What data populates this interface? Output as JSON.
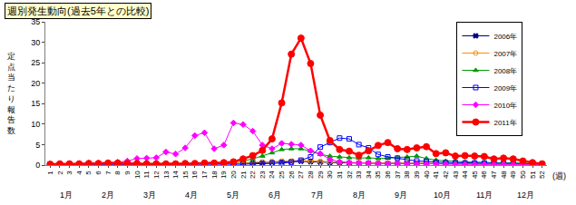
{
  "chart_data": {
    "type": "line",
    "title": "週別発生動向(過去5年との比較)",
    "y_label": "定点当たり報告数",
    "x_label": "(週)",
    "categories": [
      "1",
      "2",
      "3",
      "4",
      "5",
      "6",
      "7",
      "8",
      "9",
      "10",
      "11",
      "12",
      "13",
      "14",
      "15",
      "16",
      "17",
      "18",
      "19",
      "20",
      "21",
      "22",
      "23",
      "24",
      "25",
      "26",
      "27",
      "28",
      "29",
      "30",
      "31",
      "32",
      "33",
      "34",
      "35",
      "36",
      "37",
      "38",
      "39",
      "40",
      "41",
      "42",
      "43",
      "44",
      "45",
      "46",
      "47",
      "48",
      "49",
      "50",
      "51",
      "52"
    ],
    "month_labels": [
      "1月",
      "2月",
      "3月",
      "4月",
      "5月",
      "6月",
      "7月",
      "8月",
      "9月",
      "10月",
      "11月",
      "12月"
    ],
    "ylim": [
      0,
      35
    ],
    "yticks": [
      0,
      5,
      10,
      15,
      20,
      25,
      30,
      35
    ],
    "grid": false,
    "legend": "top right",
    "series": [
      {
        "name": "2006年",
        "color": "#000080",
        "marker": "x",
        "values": [
          0.2,
          0.2,
          0.2,
          0.2,
          0.2,
          0.2,
          0.2,
          0.2,
          0.2,
          0.2,
          0.2,
          0.2,
          0.2,
          0.3,
          0.3,
          0.3,
          0.3,
          0.3,
          0.4,
          0.4,
          0.5,
          0.5,
          0.6,
          0.7,
          0.8,
          0.9,
          0.9,
          0.8,
          0.7,
          0.6,
          0.6,
          0.5,
          0.5,
          0.5,
          0.4,
          0.4,
          0.4,
          0.4,
          0.4,
          0.4,
          0.3,
          0.3,
          0.3,
          0.3,
          0.3,
          0.3,
          0.3,
          0.2,
          0.2,
          0.2,
          0.2,
          0.2
        ]
      },
      {
        "name": "2007年",
        "color": "#ff8c00",
        "marker": "circle-open",
        "values": [
          0.2,
          0.2,
          0.3,
          0.3,
          0.3,
          0.3,
          0.3,
          0.3,
          0.3,
          0.3,
          0.3,
          0.3,
          0.3,
          0.3,
          0.3,
          0.4,
          0.4,
          0.4,
          0.5,
          0.5,
          0.6,
          0.7,
          0.8,
          0.9,
          1.0,
          1.0,
          1.1,
          1.0,
          0.9,
          0.8,
          0.7,
          0.6,
          0.6,
          0.5,
          0.5,
          0.5,
          0.5,
          0.5,
          0.5,
          0.4,
          0.4,
          0.4,
          0.4,
          0.3,
          0.3,
          0.3,
          0.3,
          0.3,
          0.3,
          0.2,
          0.2,
          0.2
        ]
      },
      {
        "name": "2008年",
        "color": "#009900",
        "marker": "triangle-up",
        "values": [
          0.3,
          0.3,
          0.3,
          0.3,
          0.3,
          0.3,
          0.3,
          0.3,
          0.3,
          0.3,
          0.3,
          0.3,
          0.4,
          0.4,
          0.4,
          0.5,
          0.5,
          0.5,
          0.6,
          0.8,
          1.0,
          1.5,
          2.2,
          3.0,
          3.8,
          4.0,
          4.0,
          3.4,
          2.6,
          2.2,
          2.0,
          1.8,
          1.7,
          1.8,
          1.6,
          1.7,
          1.8,
          2.0,
          2.2,
          1.6,
          1.2,
          1.0,
          0.9,
          0.8,
          0.7,
          0.7,
          0.6,
          0.6,
          0.5,
          0.5,
          0.4,
          0.4
        ]
      },
      {
        "name": "2009年",
        "color": "#0000ff",
        "marker": "square-open",
        "values": [
          0.2,
          0.2,
          0.2,
          0.2,
          0.2,
          0.2,
          0.2,
          0.2,
          0.2,
          0.1,
          0.1,
          0.1,
          0.1,
          0.1,
          0.1,
          0.1,
          0.1,
          0.1,
          0.2,
          0.2,
          0.2,
          0.3,
          0.3,
          0.4,
          0.5,
          0.7,
          1.2,
          2.0,
          4.4,
          5.5,
          6.6,
          6.4,
          5.0,
          4.2,
          2.6,
          2.0,
          1.7,
          1.3,
          1.0,
          0.9,
          0.7,
          0.6,
          0.6,
          0.5,
          0.5,
          0.5,
          0.4,
          0.4,
          0.4,
          0.3,
          0.3,
          0.3
        ]
      },
      {
        "name": "2010年",
        "color": "#ff00ff",
        "marker": "diamond",
        "values": [
          0.3,
          0.3,
          0.4,
          0.4,
          0.5,
          0.5,
          0.6,
          0.7,
          1.0,
          1.6,
          1.7,
          1.8,
          3.2,
          2.7,
          4.2,
          7.2,
          7.9,
          4.0,
          4.9,
          10.3,
          9.9,
          8.3,
          4.9,
          4.0,
          5.3,
          5.1,
          4.9,
          3.5,
          2.8,
          1.4,
          0.8,
          0.6,
          0.5,
          0.5,
          0.4,
          0.4,
          0.4,
          0.3,
          0.3,
          0.3,
          0.3,
          0.3,
          0.2,
          0.2,
          0.2,
          0.2,
          0.2,
          0.2,
          0.2,
          0.2,
          0.2,
          0.2
        ]
      },
      {
        "name": "2011年",
        "color": "#ff0000",
        "marker": "circle",
        "values": [
          0.2,
          0.3,
          0.3,
          0.3,
          0.4,
          0.4,
          0.5,
          0.5,
          0.4,
          0.4,
          0.3,
          0.3,
          0.3,
          0.3,
          0.4,
          0.4,
          0.5,
          0.5,
          0.6,
          0.8,
          1.5,
          2.3,
          3.6,
          6.4,
          15.2,
          27.1,
          31.0,
          24.8,
          12.2,
          6.0,
          3.8,
          3.4,
          2.4,
          3.5,
          4.8,
          5.5,
          4.0,
          3.8,
          4.2,
          4.5,
          2.8,
          3.0,
          2.2,
          2.3,
          2.2,
          2.1,
          1.5,
          1.7,
          1.5,
          1.0,
          0.6,
          0.3
        ]
      }
    ]
  }
}
